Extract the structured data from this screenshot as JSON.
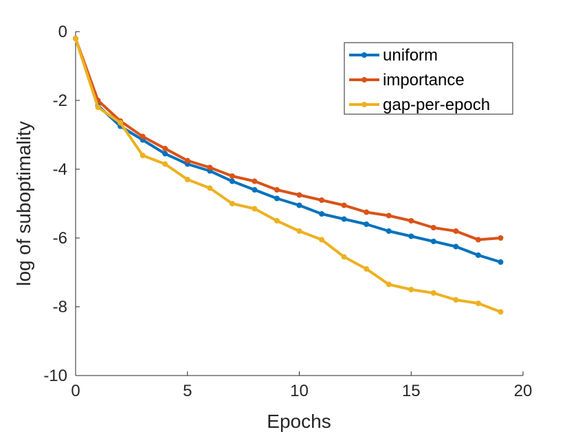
{
  "chart_data": {
    "type": "line",
    "title": "",
    "xlabel": "Epochs",
    "ylabel": "log of suboptimality",
    "xlim": [
      0,
      20
    ],
    "ylim": [
      -10,
      0
    ],
    "xticks": [
      "0",
      "5",
      "10",
      "15",
      "20"
    ],
    "yticks": [
      "0",
      "-2",
      "-4",
      "-6",
      "-8",
      "-10"
    ],
    "grid": false,
    "legend_position": "top-right",
    "x": [
      0,
      1,
      2,
      3,
      4,
      5,
      6,
      7,
      8,
      9,
      10,
      11,
      12,
      13,
      14,
      15,
      16,
      17,
      18,
      19
    ],
    "series": [
      {
        "name": "uniform",
        "color": "#0072BD",
        "values": [
          -0.2,
          -2.15,
          -2.75,
          -3.15,
          -3.55,
          -3.85,
          -4.05,
          -4.35,
          -4.6,
          -4.85,
          -5.05,
          -5.3,
          -5.45,
          -5.6,
          -5.8,
          -5.95,
          -6.1,
          -6.25,
          -6.5,
          -6.7
        ]
      },
      {
        "name": "importance",
        "color": "#D95319",
        "values": [
          -0.2,
          -2.0,
          -2.6,
          -3.05,
          -3.4,
          -3.75,
          -3.95,
          -4.2,
          -4.35,
          -4.6,
          -4.75,
          -4.9,
          -5.05,
          -5.25,
          -5.35,
          -5.5,
          -5.7,
          -5.8,
          -6.05,
          -6.0
        ]
      },
      {
        "name": "gap-per-epoch",
        "color": "#EDB120",
        "values": [
          -0.2,
          -2.2,
          -2.65,
          -3.6,
          -3.85,
          -4.3,
          -4.55,
          -5.0,
          -5.15,
          -5.5,
          -5.8,
          -6.05,
          -6.55,
          -6.9,
          -7.35,
          -7.5,
          -7.6,
          -7.8,
          -7.9,
          -8.15
        ]
      }
    ]
  }
}
